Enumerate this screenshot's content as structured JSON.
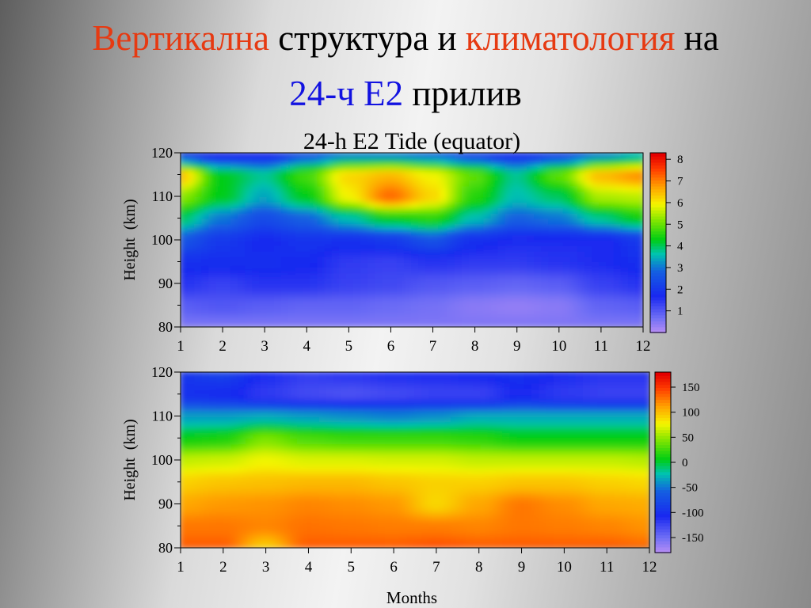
{
  "slide": {
    "title_line1": [
      {
        "text": "Вертикална",
        "color": "#e63a12"
      },
      {
        "text": " структура и ",
        "color": "#000000"
      },
      {
        "text": "климатология",
        "color": "#e63a12"
      },
      {
        "text": " на",
        "color": "#000000"
      }
    ],
    "title_line2": [
      {
        "text": "24-ч Е2",
        "color": "#1212e0"
      },
      {
        "text": " прилив",
        "color": "#000000"
      }
    ]
  },
  "chart_data": [
    {
      "type": "heatmap",
      "title": "24-h E2 Tide (equator)",
      "xlabel": "",
      "ylabel": "Height  (km)",
      "x": [
        1,
        2,
        3,
        4,
        5,
        6,
        7,
        8,
        9,
        10,
        11,
        12
      ],
      "xlim": [
        1,
        12
      ],
      "y_ticks": [
        80,
        90,
        100,
        110,
        120
      ],
      "ylim": [
        80,
        120
      ],
      "colorbar_ticks": [
        1,
        2,
        3,
        4,
        5,
        6,
        7,
        8
      ],
      "colorbar_range": [
        0,
        8.3
      ],
      "heights": [
        80,
        85,
        90,
        95,
        100,
        105,
        110,
        115,
        120
      ],
      "z": [
        [
          0.5,
          0.5,
          0.5,
          0.5,
          0.5,
          0.5,
          0.5,
          0.5,
          0.5,
          0.5,
          0.5,
          0.5
        ],
        [
          0.9,
          1.0,
          0.9,
          0.8,
          0.8,
          0.7,
          0.6,
          0.4,
          0.3,
          0.4,
          0.8,
          0.9
        ],
        [
          1.5,
          1.3,
          1.5,
          1.5,
          1.3,
          1.2,
          1.0,
          0.9,
          0.8,
          0.9,
          1.3,
          1.5
        ],
        [
          1.8,
          1.8,
          1.8,
          1.7,
          1.4,
          1.3,
          1.5,
          1.4,
          1.4,
          1.5,
          1.6,
          1.8
        ],
        [
          2.6,
          2.0,
          1.7,
          1.9,
          1.8,
          2.0,
          2.5,
          1.8,
          1.6,
          1.6,
          1.6,
          2.0
        ],
        [
          4.0,
          3.0,
          2.4,
          2.8,
          3.6,
          4.3,
          4.6,
          3.6,
          2.8,
          3.0,
          3.8,
          4.4
        ],
        [
          5.3,
          4.3,
          3.4,
          4.3,
          6.0,
          7.3,
          6.3,
          4.6,
          3.6,
          4.0,
          5.5,
          5.6
        ],
        [
          6.6,
          4.3,
          3.8,
          4.8,
          6.3,
          6.6,
          6.0,
          5.0,
          3.8,
          5.0,
          6.6,
          7.0
        ],
        [
          2.0,
          1.6,
          1.6,
          2.5,
          3.0,
          3.0,
          2.8,
          2.2,
          1.8,
          2.2,
          3.0,
          3.5
        ]
      ]
    },
    {
      "type": "heatmap",
      "title": "",
      "xlabel": "Months",
      "ylabel": "Height  (km)",
      "x": [
        1,
        2,
        3,
        4,
        5,
        6,
        7,
        8,
        9,
        10,
        11,
        12
      ],
      "xlim": [
        1,
        12
      ],
      "y_ticks": [
        80,
        90,
        100,
        110,
        120
      ],
      "ylim": [
        80,
        120
      ],
      "colorbar_ticks": [
        150,
        100,
        50,
        0,
        -50,
        -100,
        -150
      ],
      "colorbar_range": [
        -180,
        180
      ],
      "heights": [
        80,
        85,
        90,
        95,
        100,
        105,
        110,
        115,
        120
      ],
      "z": [
        [
          140,
          140,
          95,
          140,
          140,
          140,
          145,
          140,
          140,
          140,
          140,
          135
        ],
        [
          130,
          130,
          125,
          132,
          130,
          128,
          128,
          125,
          130,
          128,
          125,
          120
        ],
        [
          112,
          118,
          120,
          125,
          122,
          118,
          92,
          112,
          130,
          122,
          112,
          110
        ],
        [
          95,
          100,
          102,
          105,
          105,
          100,
          95,
          95,
          100,
          100,
          95,
          92
        ],
        [
          65,
          68,
          78,
          72,
          72,
          70,
          70,
          65,
          65,
          65,
          65,
          62
        ],
        [
          10,
          15,
          45,
          30,
          25,
          25,
          25,
          20,
          10,
          10,
          10,
          10
        ],
        [
          -35,
          -35,
          -30,
          -35,
          -40,
          -45,
          -40,
          -30,
          -30,
          -30,
          -30,
          -30
        ],
        [
          -100,
          -105,
          -120,
          -130,
          -135,
          -130,
          -125,
          -125,
          -110,
          -120,
          -125,
          -125
        ],
        [
          -95,
          -85,
          -110,
          -120,
          -115,
          -110,
          -110,
          -105,
          -100,
          -110,
          -115,
          -115
        ]
      ]
    }
  ]
}
